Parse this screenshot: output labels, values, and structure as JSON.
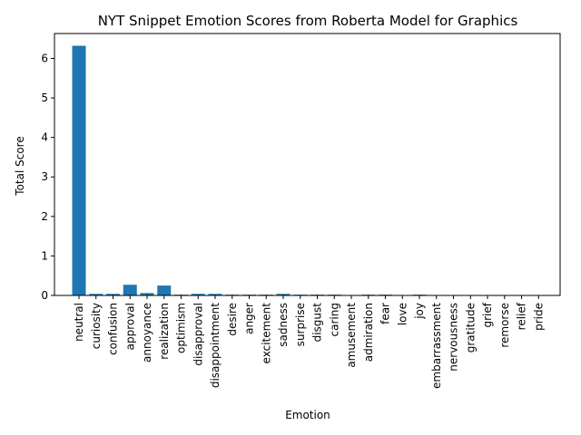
{
  "chart_data": {
    "type": "bar",
    "title": "NYT Snippet Emotion Scores from Roberta Model for Graphics",
    "xlabel": "Emotion",
    "ylabel": "Total Score",
    "ylim": [
      0,
      6.63
    ],
    "yticks": [
      0,
      1,
      2,
      3,
      4,
      5,
      6
    ],
    "bar_color": "#1f77b4",
    "grid": false,
    "categories": [
      "neutral",
      "curiosity",
      "confusion",
      "approval",
      "annoyance",
      "realization",
      "optimism",
      "disapproval",
      "disappointment",
      "desire",
      "anger",
      "excitement",
      "sadness",
      "surprise",
      "disgust",
      "caring",
      "amusement",
      "admiration",
      "fear",
      "love",
      "joy",
      "embarrassment",
      "nervousness",
      "gratitude",
      "grief",
      "remorse",
      "relief",
      "pride"
    ],
    "values": [
      6.32,
      0.04,
      0.04,
      0.27,
      0.06,
      0.25,
      0.02,
      0.04,
      0.04,
      0.02,
      0.02,
      0.02,
      0.04,
      0.02,
      0.02,
      0.02,
      0.005,
      0.02,
      0.02,
      0.005,
      0.02,
      0.003,
      0.003,
      0.003,
      0.003,
      0.003,
      0.003,
      0.003
    ]
  }
}
